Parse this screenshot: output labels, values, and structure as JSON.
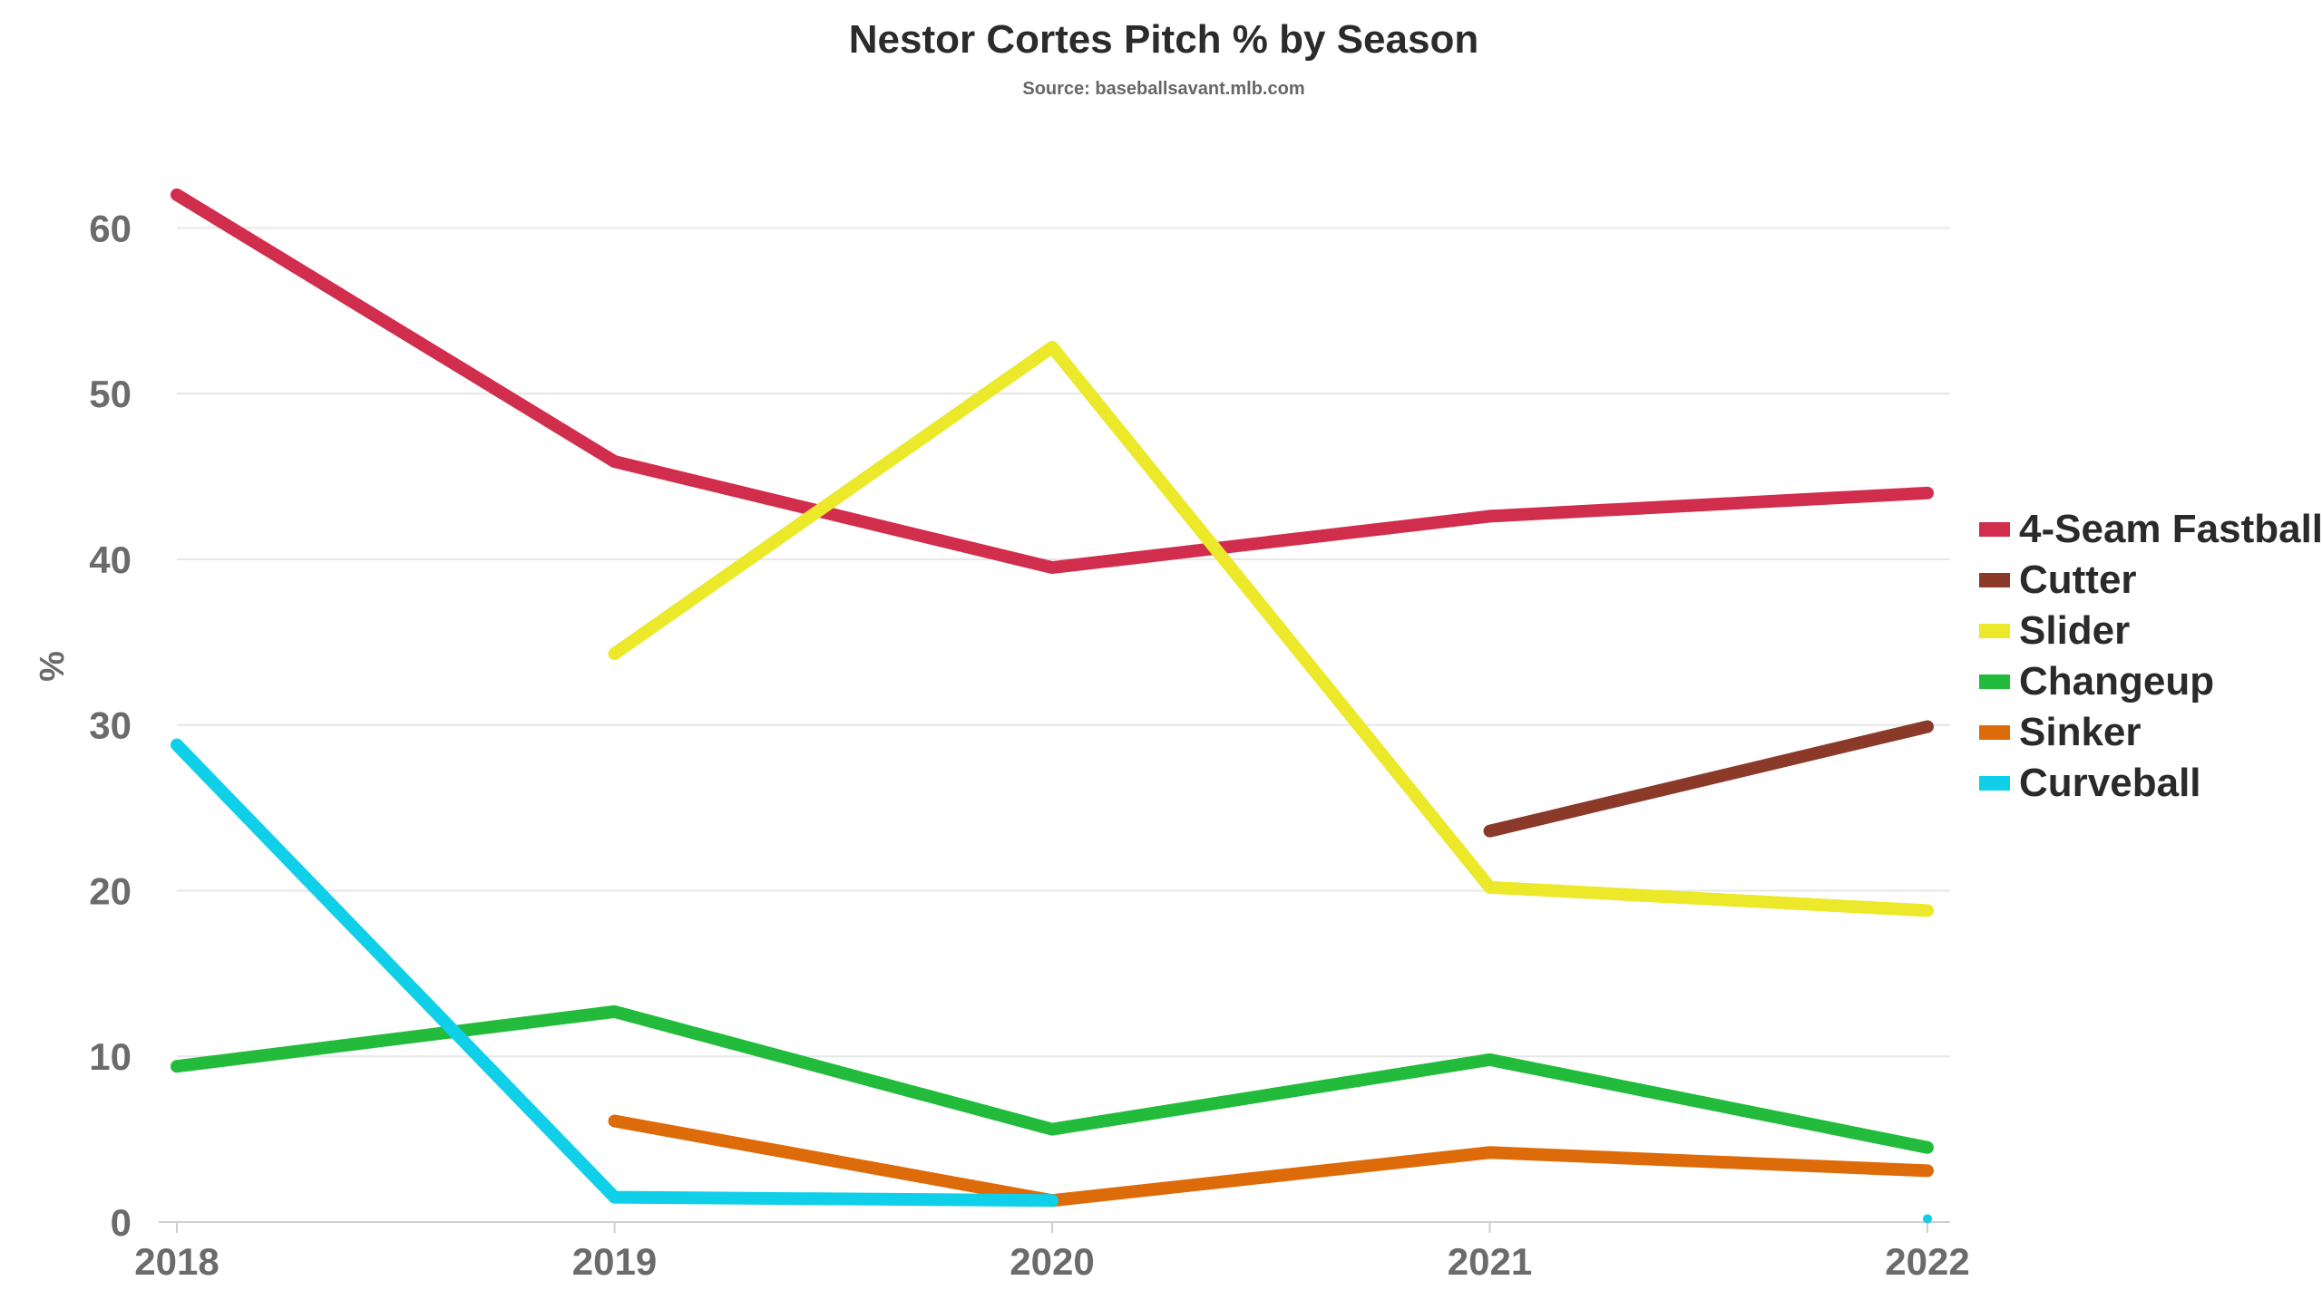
{
  "chart_data": {
    "type": "line",
    "title": "Nestor Cortes Pitch % by Season",
    "subtitle": "Source: baseballsavant.mlb.com",
    "xlabel": "",
    "ylabel": "%",
    "x": [
      "2018",
      "2019",
      "2020",
      "2021",
      "2022"
    ],
    "ylim": [
      0,
      65
    ],
    "yticks": [
      0,
      10,
      20,
      30,
      40,
      50,
      60
    ],
    "grid": true,
    "legend_position": "right",
    "series": [
      {
        "name": "4-Seam Fastball",
        "color": "#d12e4d",
        "values": [
          62.0,
          45.9,
          39.5,
          42.6,
          44.0
        ]
      },
      {
        "name": "Cutter",
        "color": "#8b3a2a",
        "values": [
          null,
          null,
          null,
          23.6,
          29.9
        ]
      },
      {
        "name": "Slider",
        "color": "#ece82a",
        "values": [
          null,
          34.3,
          52.8,
          20.2,
          18.8
        ]
      },
      {
        "name": "Changeup",
        "color": "#22bb3b",
        "values": [
          9.4,
          12.7,
          5.6,
          9.8,
          4.5
        ]
      },
      {
        "name": "Sinker",
        "color": "#dd6b0a",
        "values": [
          null,
          6.1,
          1.3,
          4.2,
          3.1
        ]
      },
      {
        "name": "Curveball",
        "color": "#10cfe8",
        "values": [
          28.8,
          1.5,
          1.3,
          null,
          0.2
        ]
      }
    ]
  }
}
